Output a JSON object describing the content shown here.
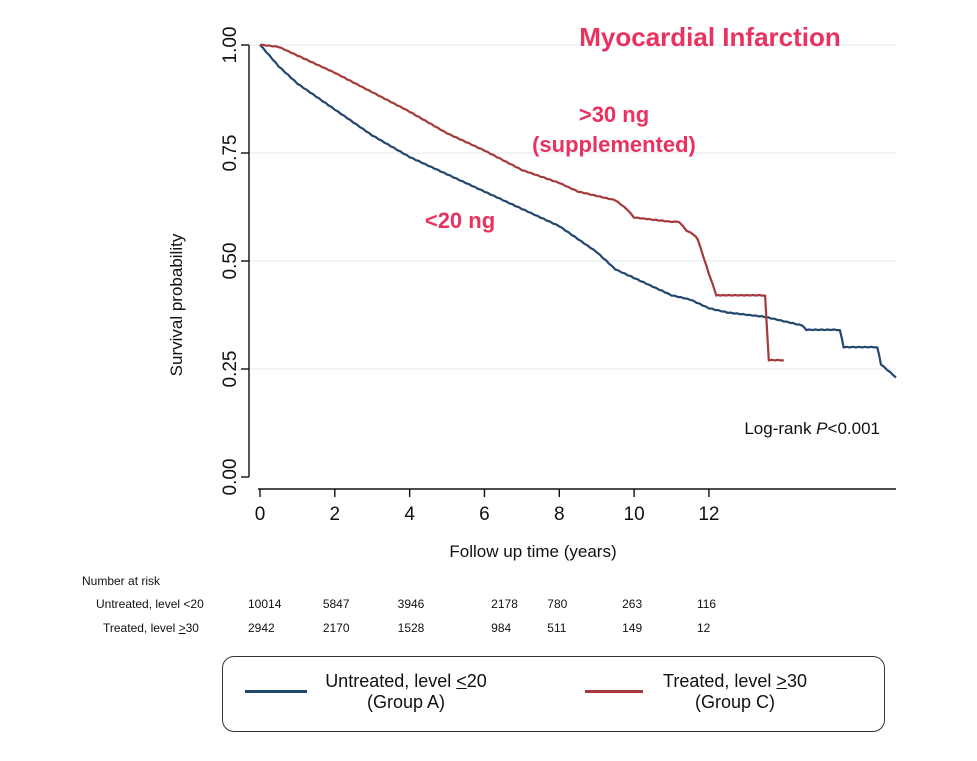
{
  "chart_data": {
    "type": "line",
    "title": "Myocardial Infarction",
    "xlabel": "Follow up time (years)",
    "ylabel": "Survival probability",
    "xlim": [
      0,
      17
    ],
    "ylim": [
      0,
      1
    ],
    "xticks": [
      "0",
      "2",
      "4",
      "6",
      "8",
      "10",
      "12"
    ],
    "yticks": [
      "0.00",
      "0.25",
      "0.50",
      "0.75",
      "1.00"
    ],
    "grid": true,
    "colors": {
      "blue": "#23476e",
      "red": "#a53a3c",
      "annotation": "#e8325f"
    },
    "annotations": {
      "red_curve_line1": ">30  ng",
      "red_curve_line2": "(supplemented)",
      "blue_curve": "<20  ng",
      "logrank_prefix": "Log-rank ",
      "logrank_p": "P",
      "logrank_suffix": "<0.001"
    },
    "series": [
      {
        "name": "Untreated, level <20 (Group A)",
        "color": "#23476e",
        "step": false,
        "x": [
          0,
          0.5,
          1,
          2,
          3,
          4,
          5,
          6,
          7,
          7.5,
          8,
          8.5,
          9,
          9.5,
          10,
          10.5,
          11,
          11.5,
          12,
          12.5,
          13,
          13.5,
          14,
          14.5,
          14.6,
          15.5,
          15.6,
          16.5,
          16.6,
          17
        ],
        "y": [
          1.0,
          0.95,
          0.91,
          0.85,
          0.79,
          0.74,
          0.7,
          0.66,
          0.62,
          0.6,
          0.58,
          0.55,
          0.52,
          0.48,
          0.46,
          0.44,
          0.42,
          0.41,
          0.39,
          0.38,
          0.375,
          0.37,
          0.36,
          0.35,
          0.34,
          0.34,
          0.3,
          0.3,
          0.26,
          0.23
        ]
      },
      {
        "name": "Treated, level >30 (Group C)",
        "color": "#a53a3c",
        "step": false,
        "x": [
          0,
          0.5,
          1,
          2,
          3,
          4,
          5,
          6,
          7,
          8,
          8.5,
          9,
          9.5,
          9.8,
          10,
          10.5,
          11,
          11.2,
          11.4,
          11.6,
          11.7,
          12,
          12.2,
          12.3,
          13.5,
          13.6,
          14
        ],
        "y": [
          1.0,
          0.995,
          0.975,
          0.935,
          0.89,
          0.845,
          0.795,
          0.755,
          0.71,
          0.68,
          0.66,
          0.65,
          0.64,
          0.62,
          0.6,
          0.595,
          0.59,
          0.59,
          0.57,
          0.56,
          0.55,
          0.47,
          0.42,
          0.42,
          0.42,
          0.27,
          0.27
        ]
      }
    ]
  },
  "risk_table": {
    "title": "Number at risk",
    "rows": [
      {
        "label": "Untreated, level <20",
        "values": [
          "10014",
          "5847",
          "3946",
          "2178",
          "780",
          "263",
          "116"
        ]
      },
      {
        "label_prefix": "Treated, level ",
        "label_underlined": ">",
        "label_suffix": "30",
        "values": [
          "2942",
          "2170",
          "1528",
          "984",
          "511",
          "149",
          "12"
        ]
      }
    ]
  },
  "legend": {
    "items": [
      {
        "prefix": "Untreated, level ",
        "underlined": "<",
        "suffix": "20",
        "group": "(Group A)",
        "color": "#23476e"
      },
      {
        "prefix": "Treated, level ",
        "underlined": ">",
        "suffix": "30",
        "group": "(Group C)",
        "color": "#a53a3c"
      }
    ]
  }
}
